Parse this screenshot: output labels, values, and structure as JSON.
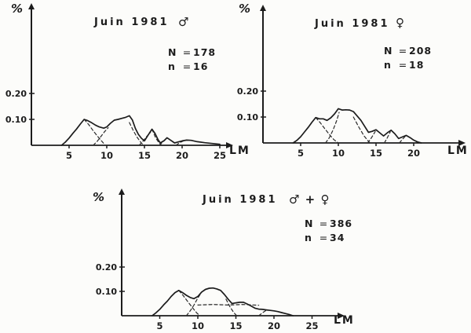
{
  "figure": {
    "background": "#fcfcfa",
    "ink": "#1c1c1c",
    "dash_ink": "#2a2a2a",
    "description": "Hand-drawn scanned figure: three size-frequency distribution panels (polymodal curves with dashed cohort components), June 1981"
  },
  "chart_data": [
    {
      "type": "line",
      "panel": "males",
      "title": "Juin 1981",
      "group_symbol": "♂",
      "stats": [
        {
          "label": "N",
          "eq": "=",
          "value": "178"
        },
        {
          "label": "n",
          "eq": "=",
          "value": "16"
        }
      ],
      "ylabel": "%",
      "xlabel": "LM",
      "xticks": [
        "5",
        "10",
        "15",
        "20",
        "25"
      ],
      "xtick_values": [
        5,
        10,
        15,
        20,
        25
      ],
      "yticks": [
        {
          "label": "0.10",
          "value": 0.1
        },
        {
          "label": "0.20",
          "value": 0.2
        }
      ],
      "xlim": [
        0,
        26
      ],
      "ylim": [
        0,
        0.5
      ],
      "grid": false,
      "envelope": [
        [
          4,
          0
        ],
        [
          4.5,
          0.012
        ],
        [
          5,
          0.028
        ],
        [
          5.5,
          0.046
        ],
        [
          6,
          0.063
        ],
        [
          6.5,
          0.082
        ],
        [
          7,
          0.1
        ],
        [
          7.4,
          0.096
        ],
        [
          8,
          0.087
        ],
        [
          8.5,
          0.078
        ],
        [
          9,
          0.071
        ],
        [
          9.6,
          0.066
        ],
        [
          10,
          0.071
        ],
        [
          10.5,
          0.085
        ],
        [
          11,
          0.097
        ],
        [
          11.5,
          0.1
        ],
        [
          12,
          0.104
        ],
        [
          12.5,
          0.108
        ],
        [
          13,
          0.114
        ],
        [
          13.4,
          0.098
        ],
        [
          13.8,
          0.065
        ],
        [
          14.2,
          0.042
        ],
        [
          14.6,
          0.027
        ],
        [
          15,
          0.017
        ],
        [
          15.5,
          0.04
        ],
        [
          16,
          0.062
        ],
        [
          16.4,
          0.046
        ],
        [
          16.8,
          0.022
        ],
        [
          17.1,
          0.009
        ],
        [
          17.6,
          0.018
        ],
        [
          18,
          0.029
        ],
        [
          18.5,
          0.019
        ],
        [
          19,
          0.009
        ],
        [
          19.5,
          0.013
        ],
        [
          20,
          0.017
        ],
        [
          20.6,
          0.02
        ],
        [
          21.2,
          0.019
        ],
        [
          22,
          0.014
        ],
        [
          23,
          0.01
        ],
        [
          24,
          0.007
        ],
        [
          25,
          0.004
        ]
      ],
      "components": [
        [
          [
            7,
            0.1
          ],
          [
            7.6,
            0.08
          ],
          [
            8.2,
            0.056
          ],
          [
            8.8,
            0.034
          ],
          [
            9.4,
            0.014
          ],
          [
            9.8,
            0
          ]
        ],
        [
          [
            8.2,
            0
          ],
          [
            8.7,
            0.014
          ],
          [
            9.2,
            0.033
          ],
          [
            9.7,
            0.052
          ],
          [
            10.2,
            0.068
          ]
        ],
        [
          [
            13,
            0.088
          ],
          [
            13.5,
            0.058
          ],
          [
            14,
            0.032
          ],
          [
            14.5,
            0.012
          ],
          [
            14.9,
            0
          ]
        ],
        [
          [
            14.3,
            0
          ],
          [
            14.8,
            0.016
          ],
          [
            15.3,
            0.034
          ],
          [
            15.8,
            0.05
          ]
        ],
        [
          [
            16,
            0.062
          ],
          [
            16.5,
            0.028
          ],
          [
            17,
            0.007
          ],
          [
            17.3,
            0
          ]
        ],
        [
          [
            17,
            0
          ],
          [
            17.5,
            0.015
          ],
          [
            18,
            0.029
          ]
        ],
        [
          [
            19.2,
            0
          ],
          [
            19.7,
            0.011
          ],
          [
            20.2,
            0.017
          ]
        ]
      ]
    },
    {
      "type": "line",
      "panel": "females",
      "title": "Juin 1981",
      "group_symbol": "♀",
      "stats": [
        {
          "label": "N",
          "eq": "=",
          "value": "208"
        },
        {
          "label": "n",
          "eq": "=",
          "value": "18"
        }
      ],
      "ylabel": "%",
      "xlabel": "LM",
      "xticks": [
        "5",
        "10",
        "15",
        "20"
      ],
      "xtick_values": [
        5,
        10,
        15,
        20
      ],
      "yticks": [
        {
          "label": "0.10",
          "value": 0.1
        },
        {
          "label": "0.20",
          "value": 0.2
        }
      ],
      "xlim": [
        0,
        26
      ],
      "ylim": [
        0,
        0.5
      ],
      "grid": false,
      "envelope": [
        [
          4,
          0
        ],
        [
          4.5,
          0.01
        ],
        [
          5,
          0.024
        ],
        [
          5.5,
          0.042
        ],
        [
          6,
          0.06
        ],
        [
          6.5,
          0.08
        ],
        [
          7,
          0.098
        ],
        [
          7.5,
          0.093
        ],
        [
          8,
          0.093
        ],
        [
          8.5,
          0.087
        ],
        [
          9,
          0.097
        ],
        [
          9.5,
          0.112
        ],
        [
          10,
          0.132
        ],
        [
          10.5,
          0.127
        ],
        [
          11,
          0.128
        ],
        [
          11.5,
          0.127
        ],
        [
          12,
          0.121
        ],
        [
          12.5,
          0.104
        ],
        [
          13,
          0.087
        ],
        [
          13.5,
          0.064
        ],
        [
          14,
          0.041
        ],
        [
          14.5,
          0.045
        ],
        [
          15,
          0.051
        ],
        [
          15.5,
          0.039
        ],
        [
          16,
          0.027
        ],
        [
          16.5,
          0.039
        ],
        [
          17,
          0.049
        ],
        [
          17.5,
          0.035
        ],
        [
          18,
          0.017
        ],
        [
          18.5,
          0.023
        ],
        [
          19,
          0.029
        ],
        [
          19.5,
          0.021
        ],
        [
          20,
          0.011
        ],
        [
          20.5,
          0.004
        ],
        [
          21,
          0
        ]
      ],
      "components": [
        [
          [
            7,
            0.098
          ],
          [
            7.6,
            0.078
          ],
          [
            8.2,
            0.055
          ],
          [
            8.8,
            0.033
          ],
          [
            9.4,
            0.013
          ],
          [
            10,
            0
          ]
        ],
        [
          [
            8.3,
            0
          ],
          [
            8.8,
            0.02
          ],
          [
            9.3,
            0.05
          ],
          [
            9.8,
            0.088
          ],
          [
            10.1,
            0.118
          ]
        ],
        [
          [
            12,
            0.1
          ],
          [
            12.7,
            0.062
          ],
          [
            13.4,
            0.028
          ],
          [
            14,
            0.006
          ],
          [
            14.2,
            0
          ]
        ],
        [
          [
            13.9,
            0
          ],
          [
            14.4,
            0.02
          ],
          [
            14.9,
            0.044
          ]
        ],
        [
          [
            16.1,
            0
          ],
          [
            16.5,
            0.02
          ],
          [
            16.9,
            0.043
          ]
        ],
        [
          [
            18.1,
            0
          ],
          [
            18.5,
            0.014
          ],
          [
            18.9,
            0.026
          ]
        ]
      ]
    },
    {
      "type": "line",
      "panel": "males_plus_females",
      "title": "Juin 1981",
      "group_symbol": "♂ + ♀",
      "stats": [
        {
          "label": "N",
          "eq": "=",
          "value": "386"
        },
        {
          "label": "n",
          "eq": "=",
          "value": "34"
        }
      ],
      "ylabel": "%",
      "xlabel": "LM",
      "xticks": [
        "5",
        "10",
        "15",
        "20",
        "25"
      ],
      "xtick_values": [
        5,
        10,
        15,
        20,
        25
      ],
      "yticks": [
        {
          "label": "0.10",
          "value": 0.1
        },
        {
          "label": "0.20",
          "value": 0.2
        }
      ],
      "xlim": [
        0,
        28
      ],
      "ylim": [
        0,
        0.5
      ],
      "grid": false,
      "envelope": [
        [
          4,
          0
        ],
        [
          4.5,
          0.012
        ],
        [
          5,
          0.026
        ],
        [
          5.5,
          0.044
        ],
        [
          6,
          0.06
        ],
        [
          6.5,
          0.079
        ],
        [
          7,
          0.095
        ],
        [
          7.5,
          0.104
        ],
        [
          8,
          0.095
        ],
        [
          8.5,
          0.084
        ],
        [
          9,
          0.075
        ],
        [
          9.5,
          0.07
        ],
        [
          10,
          0.079
        ],
        [
          10.5,
          0.097
        ],
        [
          11,
          0.108
        ],
        [
          11.5,
          0.113
        ],
        [
          12,
          0.114
        ],
        [
          12.5,
          0.11
        ],
        [
          13,
          0.104
        ],
        [
          13.5,
          0.087
        ],
        [
          14,
          0.067
        ],
        [
          14.5,
          0.05
        ],
        [
          15,
          0.053
        ],
        [
          15.5,
          0.055
        ],
        [
          16,
          0.055
        ],
        [
          16.5,
          0.048
        ],
        [
          17,
          0.04
        ],
        [
          17.5,
          0.031
        ],
        [
          18,
          0.027
        ],
        [
          18.5,
          0.026
        ],
        [
          19,
          0.024
        ],
        [
          19.5,
          0.022
        ],
        [
          20,
          0.02
        ],
        [
          20.5,
          0.017
        ],
        [
          21,
          0.013
        ],
        [
          21.5,
          0.009
        ],
        [
          22,
          0.005
        ],
        [
          22.5,
          0
        ]
      ],
      "components": [
        [
          [
            7.5,
            0.104
          ],
          [
            8.1,
            0.082
          ],
          [
            8.7,
            0.057
          ],
          [
            9.3,
            0.033
          ],
          [
            9.9,
            0.01
          ],
          [
            10.3,
            0
          ]
        ],
        [
          [
            8.5,
            0
          ],
          [
            9,
            0.02
          ],
          [
            9.5,
            0.044
          ],
          [
            10,
            0.073
          ],
          [
            10.4,
            0.092
          ]
        ],
        [
          [
            10,
            0.044
          ],
          [
            12,
            0.046
          ],
          [
            14,
            0.044
          ],
          [
            16,
            0.046
          ],
          [
            18,
            0.043
          ]
        ],
        [
          [
            13.7,
            0.068
          ],
          [
            14.2,
            0.038
          ],
          [
            14.7,
            0.014
          ],
          [
            15.1,
            0
          ]
        ],
        [
          [
            18,
            0
          ],
          [
            18.5,
            0.012
          ],
          [
            19,
            0.023
          ]
        ]
      ]
    }
  ]
}
